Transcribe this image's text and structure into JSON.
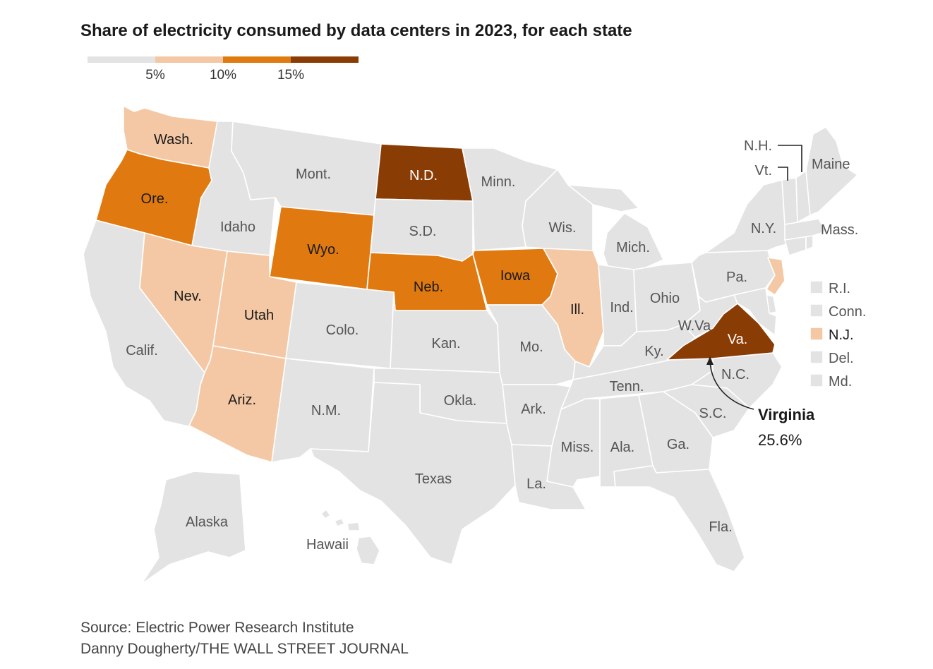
{
  "title": "Share of electricity consumed by data centers in 2023, for each state",
  "legend": {
    "colors": [
      "#e3e3e3",
      "#f4c8a4",
      "#e07a10",
      "#8a3c05"
    ],
    "ticks": [
      "5%",
      "10%",
      "15%"
    ]
  },
  "chart_data": {
    "type": "choropleth",
    "metric": "Share of electricity consumed by data centers in 2023",
    "bins": [
      {
        "range": "0-5%",
        "color": "#e3e3e3"
      },
      {
        "range": "5-10%",
        "color": "#f4c8a4"
      },
      {
        "range": "10-15%",
        "color": "#e07a10"
      },
      {
        "range": "15%+",
        "color": "#8a3c05"
      }
    ],
    "states": {
      "wa": {
        "label": "Wash.",
        "bin": 1
      },
      "or": {
        "label": "Ore.",
        "bin": 2
      },
      "ca": {
        "label": "Calif.",
        "bin": 0
      },
      "id": {
        "label": "Idaho",
        "bin": 0
      },
      "nv": {
        "label": "Nev.",
        "bin": 1
      },
      "mt": {
        "label": "Mont.",
        "bin": 0
      },
      "wy": {
        "label": "Wyo.",
        "bin": 2
      },
      "ut": {
        "label": "Utah",
        "bin": 1
      },
      "az": {
        "label": "Ariz.",
        "bin": 1
      },
      "co": {
        "label": "Colo.",
        "bin": 0
      },
      "nm": {
        "label": "N.M.",
        "bin": 0
      },
      "nd": {
        "label": "N.D.",
        "bin": 3
      },
      "sd": {
        "label": "S.D.",
        "bin": 0
      },
      "ne": {
        "label": "Neb.",
        "bin": 2
      },
      "ks": {
        "label": "Kan.",
        "bin": 0
      },
      "ok": {
        "label": "Okla.",
        "bin": 0
      },
      "tx": {
        "label": "Texas",
        "bin": 0
      },
      "mn": {
        "label": "Minn.",
        "bin": 0
      },
      "ia": {
        "label": "Iowa",
        "bin": 2
      },
      "mo": {
        "label": "Mo.",
        "bin": 0
      },
      "ar": {
        "label": "Ark.",
        "bin": 0
      },
      "la": {
        "label": "La.",
        "bin": 0
      },
      "wi": {
        "label": "Wis.",
        "bin": 0
      },
      "il": {
        "label": "Ill.",
        "bin": 1
      },
      "mi": {
        "label": "Mich.",
        "bin": 0
      },
      "in": {
        "label": "Ind.",
        "bin": 0
      },
      "oh": {
        "label": "Ohio",
        "bin": 0
      },
      "ky": {
        "label": "Ky.",
        "bin": 0
      },
      "tn": {
        "label": "Tenn.",
        "bin": 0
      },
      "ms": {
        "label": "Miss.",
        "bin": 0
      },
      "al": {
        "label": "Ala.",
        "bin": 0
      },
      "ga": {
        "label": "Ga.",
        "bin": 0
      },
      "fl": {
        "label": "Fla.",
        "bin": 0
      },
      "sc": {
        "label": "S.C.",
        "bin": 0
      },
      "nc": {
        "label": "N.C.",
        "bin": 0
      },
      "va": {
        "label": "Va.",
        "bin": 3
      },
      "wv": {
        "label": "W.Va",
        "bin": 0
      },
      "pa": {
        "label": "Pa.",
        "bin": 0
      },
      "ny": {
        "label": "N.Y.",
        "bin": 0
      },
      "nj": {
        "label": "N.J.",
        "bin": 1
      },
      "de": {
        "label": "Del.",
        "bin": 0
      },
      "md": {
        "label": "Md.",
        "bin": 0
      },
      "ct": {
        "label": "Conn.",
        "bin": 0
      },
      "ri": {
        "label": "R.I.",
        "bin": 0
      },
      "ma": {
        "label": "Mass.",
        "bin": 0
      },
      "vt": {
        "label": "Vt.",
        "bin": 0
      },
      "nh": {
        "label": "N.H.",
        "bin": 0
      },
      "me": {
        "label": "Maine",
        "bin": 0
      },
      "ak": {
        "label": "Alaska",
        "bin": 0
      },
      "hi": {
        "label": "Hawaii",
        "bin": 0
      }
    },
    "annotation": {
      "state": "Virginia",
      "value": "25.6%"
    }
  },
  "source": "Source: Electric Power Research Institute",
  "credit": "Danny Dougherty/THE WALL STREET JOURNAL"
}
